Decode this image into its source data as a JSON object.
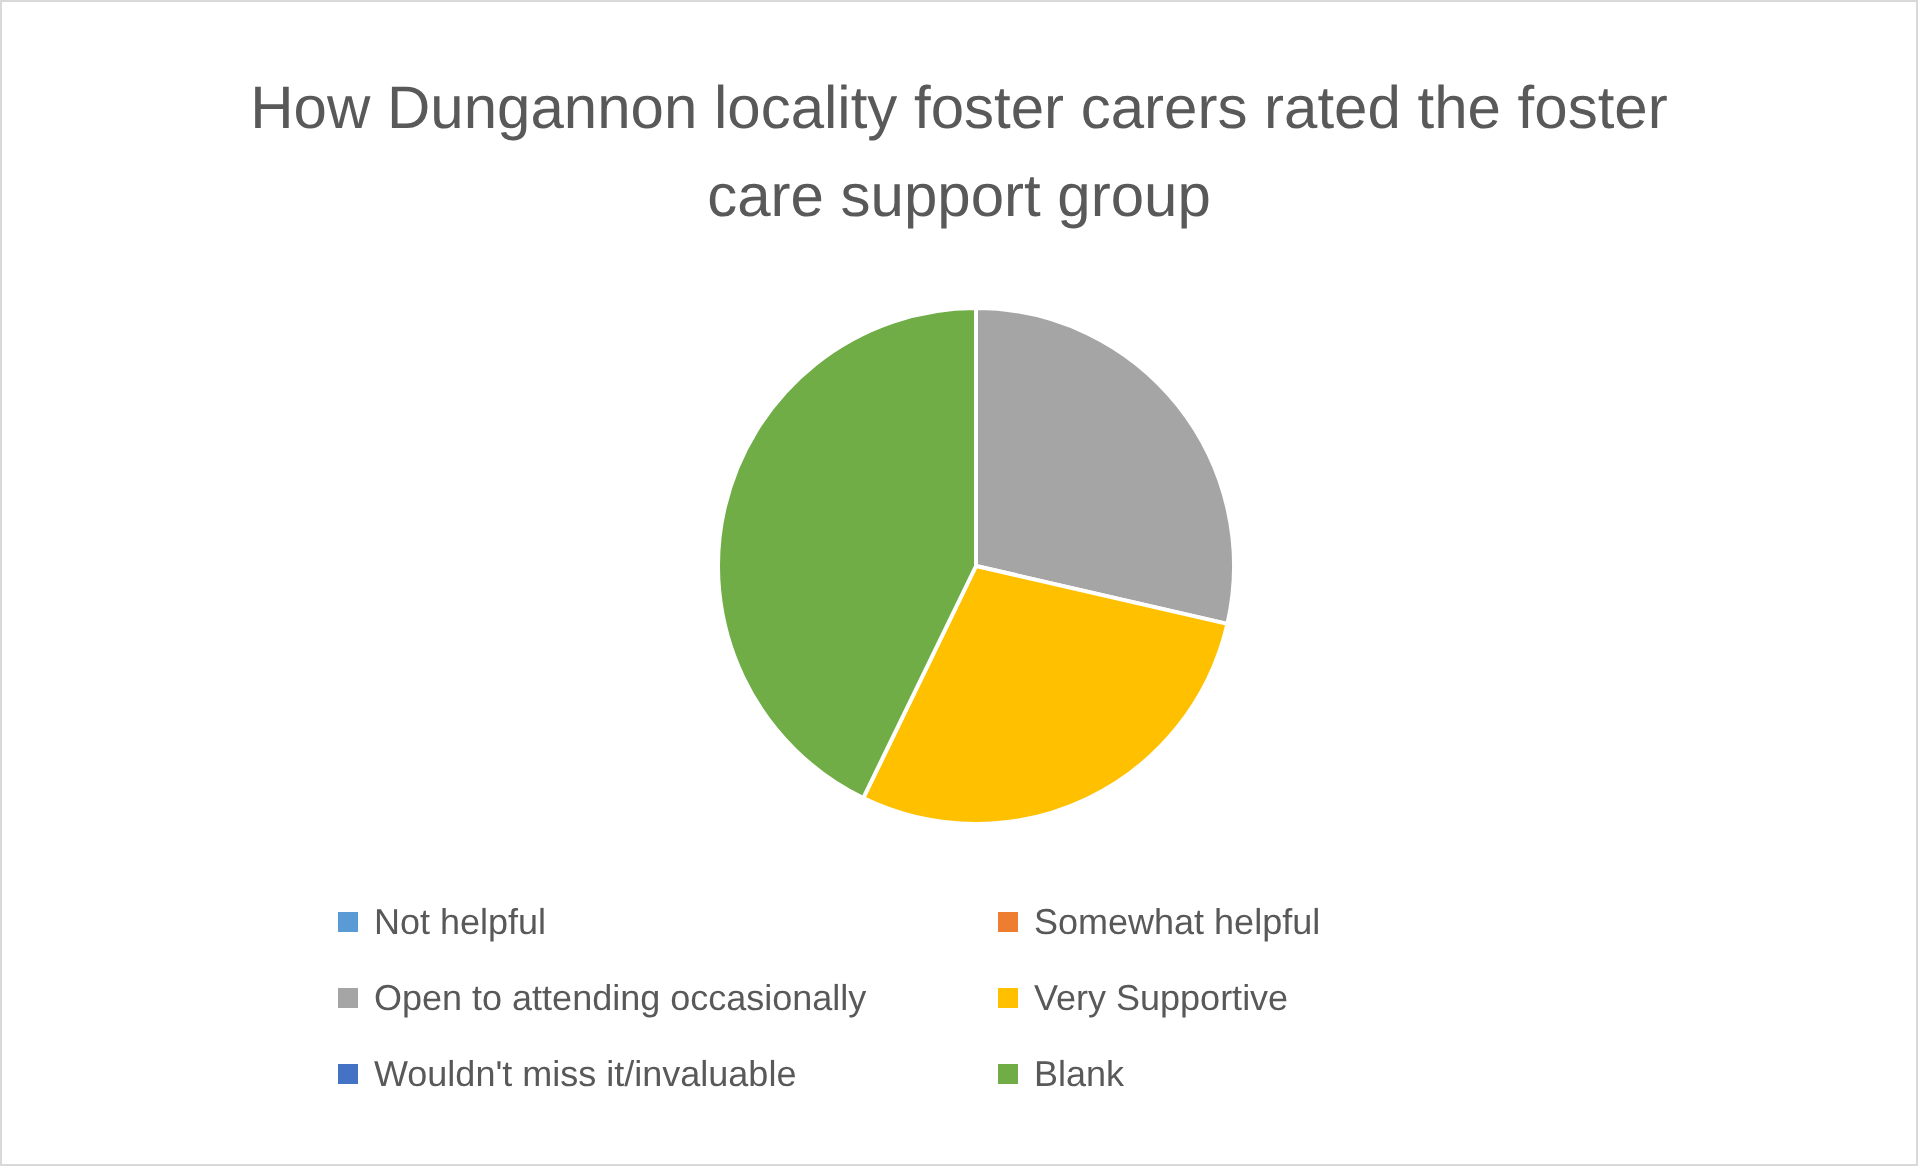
{
  "chart_data": {
    "type": "pie",
    "title": "How Dungannon locality foster carers rated the foster care support group",
    "categories": [
      "Not helpful",
      "Somewhat helpful",
      "Open to attending occasionally",
      "Very Supportive",
      "Wouldn't miss it/invaluable",
      "Blank"
    ],
    "values": [
      0,
      0,
      28.6,
      28.6,
      0,
      42.8
    ],
    "colors": [
      "#5b9bd5",
      "#ed7d31",
      "#a5a5a5",
      "#ffc000",
      "#4472c4",
      "#70ad47"
    ],
    "legend": "bottom"
  }
}
